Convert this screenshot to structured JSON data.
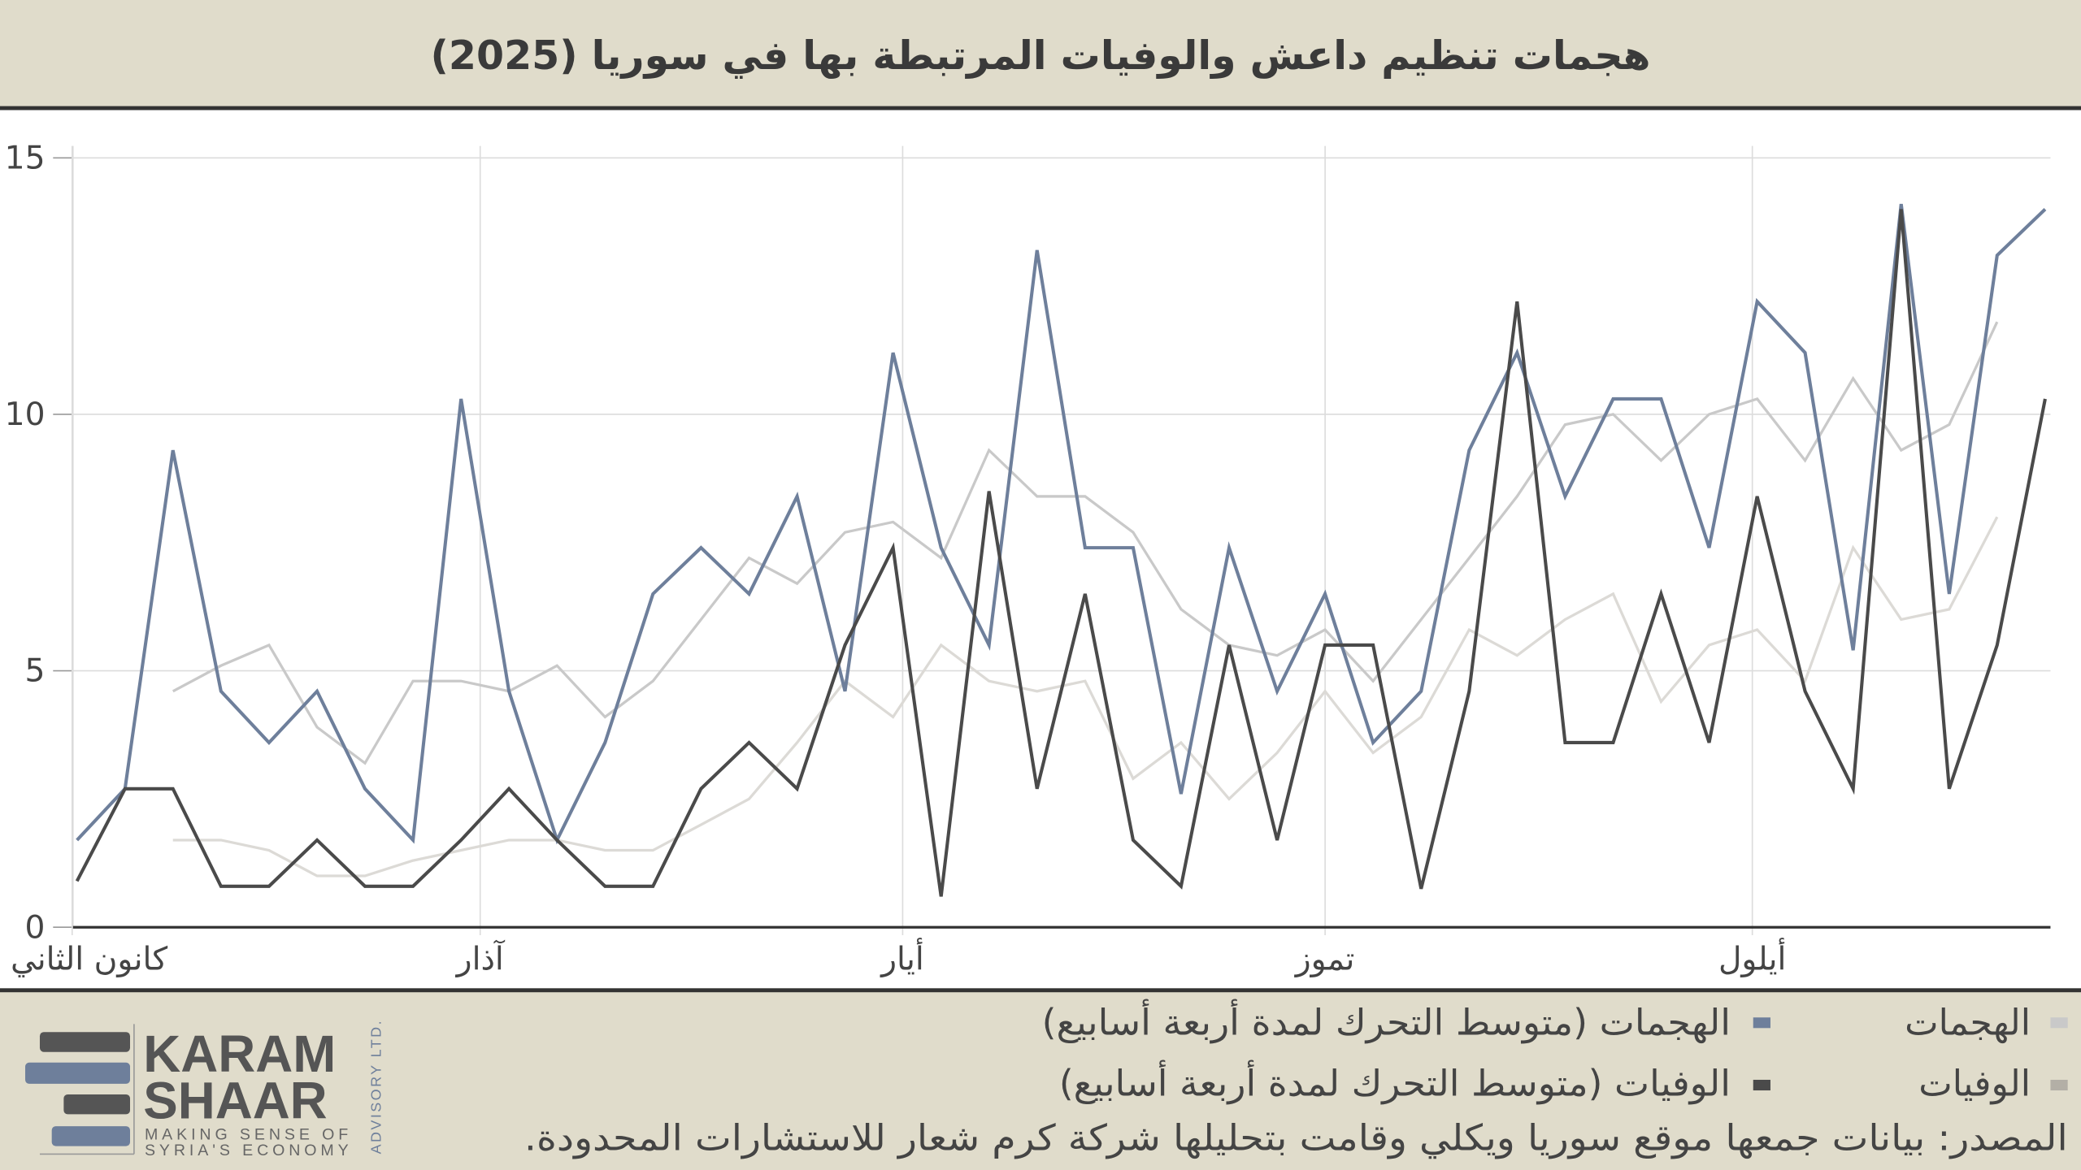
{
  "chart_data": {
    "type": "line",
    "title": "هجمات تنظيم داعش والوفيات المرتبطة بها في سوريا (2025)",
    "xlabel": "",
    "ylabel": "",
    "ylim": [
      0,
      15
    ],
    "yticks": [
      "0",
      "5",
      "10",
      "15"
    ],
    "ytick_values": [
      0,
      5,
      10,
      15
    ],
    "xticks": [
      {
        "label": "كانون الثاني",
        "week": -0.1
      },
      {
        "label": "آذار",
        "week": 8.4
      },
      {
        "label": "أيار",
        "week": 17.2
      },
      {
        "label": "تموز",
        "week": 26.0
      },
      {
        "label": "أيلول",
        "week": 34.9
      }
    ],
    "grid": true,
    "x_unit": "week index (2025)",
    "series": [
      {
        "name": "الهجمات",
        "color": "#c9c9c9",
        "values": [
          null,
          null,
          4.6,
          5.1,
          5.5,
          3.9,
          3.2,
          4.8,
          4.8,
          4.6,
          5.1,
          4.1,
          4.8,
          6.0,
          7.2,
          6.7,
          7.7,
          7.9,
          7.2,
          9.3,
          8.4,
          8.4,
          7.7,
          6.2,
          5.5,
          5.3,
          5.8,
          4.8,
          6.0,
          7.2,
          8.4,
          9.8,
          10.0,
          9.1,
          10.0,
          10.3,
          9.1,
          10.7,
          9.3,
          9.8,
          11.8,
          null
        ]
      },
      {
        "name": "الوفيات",
        "color": "#dcdad6",
        "values": [
          null,
          null,
          1.7,
          1.7,
          1.5,
          1.0,
          1.0,
          1.3,
          1.5,
          1.7,
          1.7,
          1.5,
          1.5,
          2.0,
          2.5,
          3.6,
          4.8,
          4.1,
          5.5,
          4.8,
          4.6,
          4.8,
          2.9,
          3.6,
          2.5,
          3.4,
          4.6,
          3.4,
          4.1,
          5.8,
          5.3,
          6.0,
          6.5,
          4.4,
          5.5,
          5.8,
          4.8,
          7.4,
          6.0,
          6.2,
          8.0,
          null
        ]
      },
      {
        "name": "الهجمات (متوسط التحرك لمدة أربعة أسابيع)",
        "color": "#6e7f9b",
        "values": [
          1.7,
          2.7,
          9.3,
          4.6,
          3.6,
          4.6,
          2.7,
          1.7,
          10.3,
          4.6,
          1.7,
          3.6,
          6.5,
          7.4,
          6.5,
          8.4,
          4.6,
          11.2,
          7.4,
          5.5,
          13.2,
          7.4,
          7.4,
          2.6,
          7.4,
          4.6,
          6.5,
          3.6,
          4.6,
          9.3,
          11.2,
          8.4,
          10.3,
          10.3,
          7.4,
          12.2,
          11.2,
          5.4,
          14.1,
          6.5,
          13.1,
          14.0
        ]
      },
      {
        "name": "الوفيات (متوسط التحرك لمدة أربعة أسابيع)",
        "color": "#4a4a4a",
        "values": [
          0.9,
          2.7,
          2.7,
          0.8,
          0.8,
          1.7,
          0.8,
          0.8,
          1.7,
          2.7,
          1.7,
          0.8,
          0.8,
          2.7,
          3.6,
          2.7,
          5.5,
          7.4,
          0.6,
          8.5,
          2.7,
          6.5,
          1.7,
          0.8,
          5.5,
          1.7,
          5.5,
          5.5,
          0.75,
          4.6,
          12.2,
          3.6,
          3.6,
          6.5,
          3.6,
          8.4,
          4.6,
          2.7,
          14.0,
          2.7,
          5.5,
          10.3
        ]
      }
    ],
    "legend_placement": "bottom-right"
  },
  "legend": [
    {
      "label": "الهجمات",
      "color": "#c9c9c9"
    },
    {
      "label": "الهجمات (متوسط التحرك لمدة أربعة أسابيع)",
      "color": "#6e7f9b"
    },
    {
      "label": "الوفيات",
      "color": "#b3afa6"
    },
    {
      "label": "الوفيات (متوسط التحرك لمدة أربعة أسابيع)",
      "color": "#4a4a4a"
    }
  ],
  "source": "المصدر: بيانات جمعها موقع سوريا ويكلي وقامت بتحليلها شركة كرم شعار للاستشارات المحدودة.",
  "logo": {
    "line1": "KARAM",
    "line2": "SHAAR",
    "tagline1": "MAKING SENSE OF",
    "tagline2": "SYRIA'S ECONOMY",
    "side": "ADVISORY LTD."
  }
}
